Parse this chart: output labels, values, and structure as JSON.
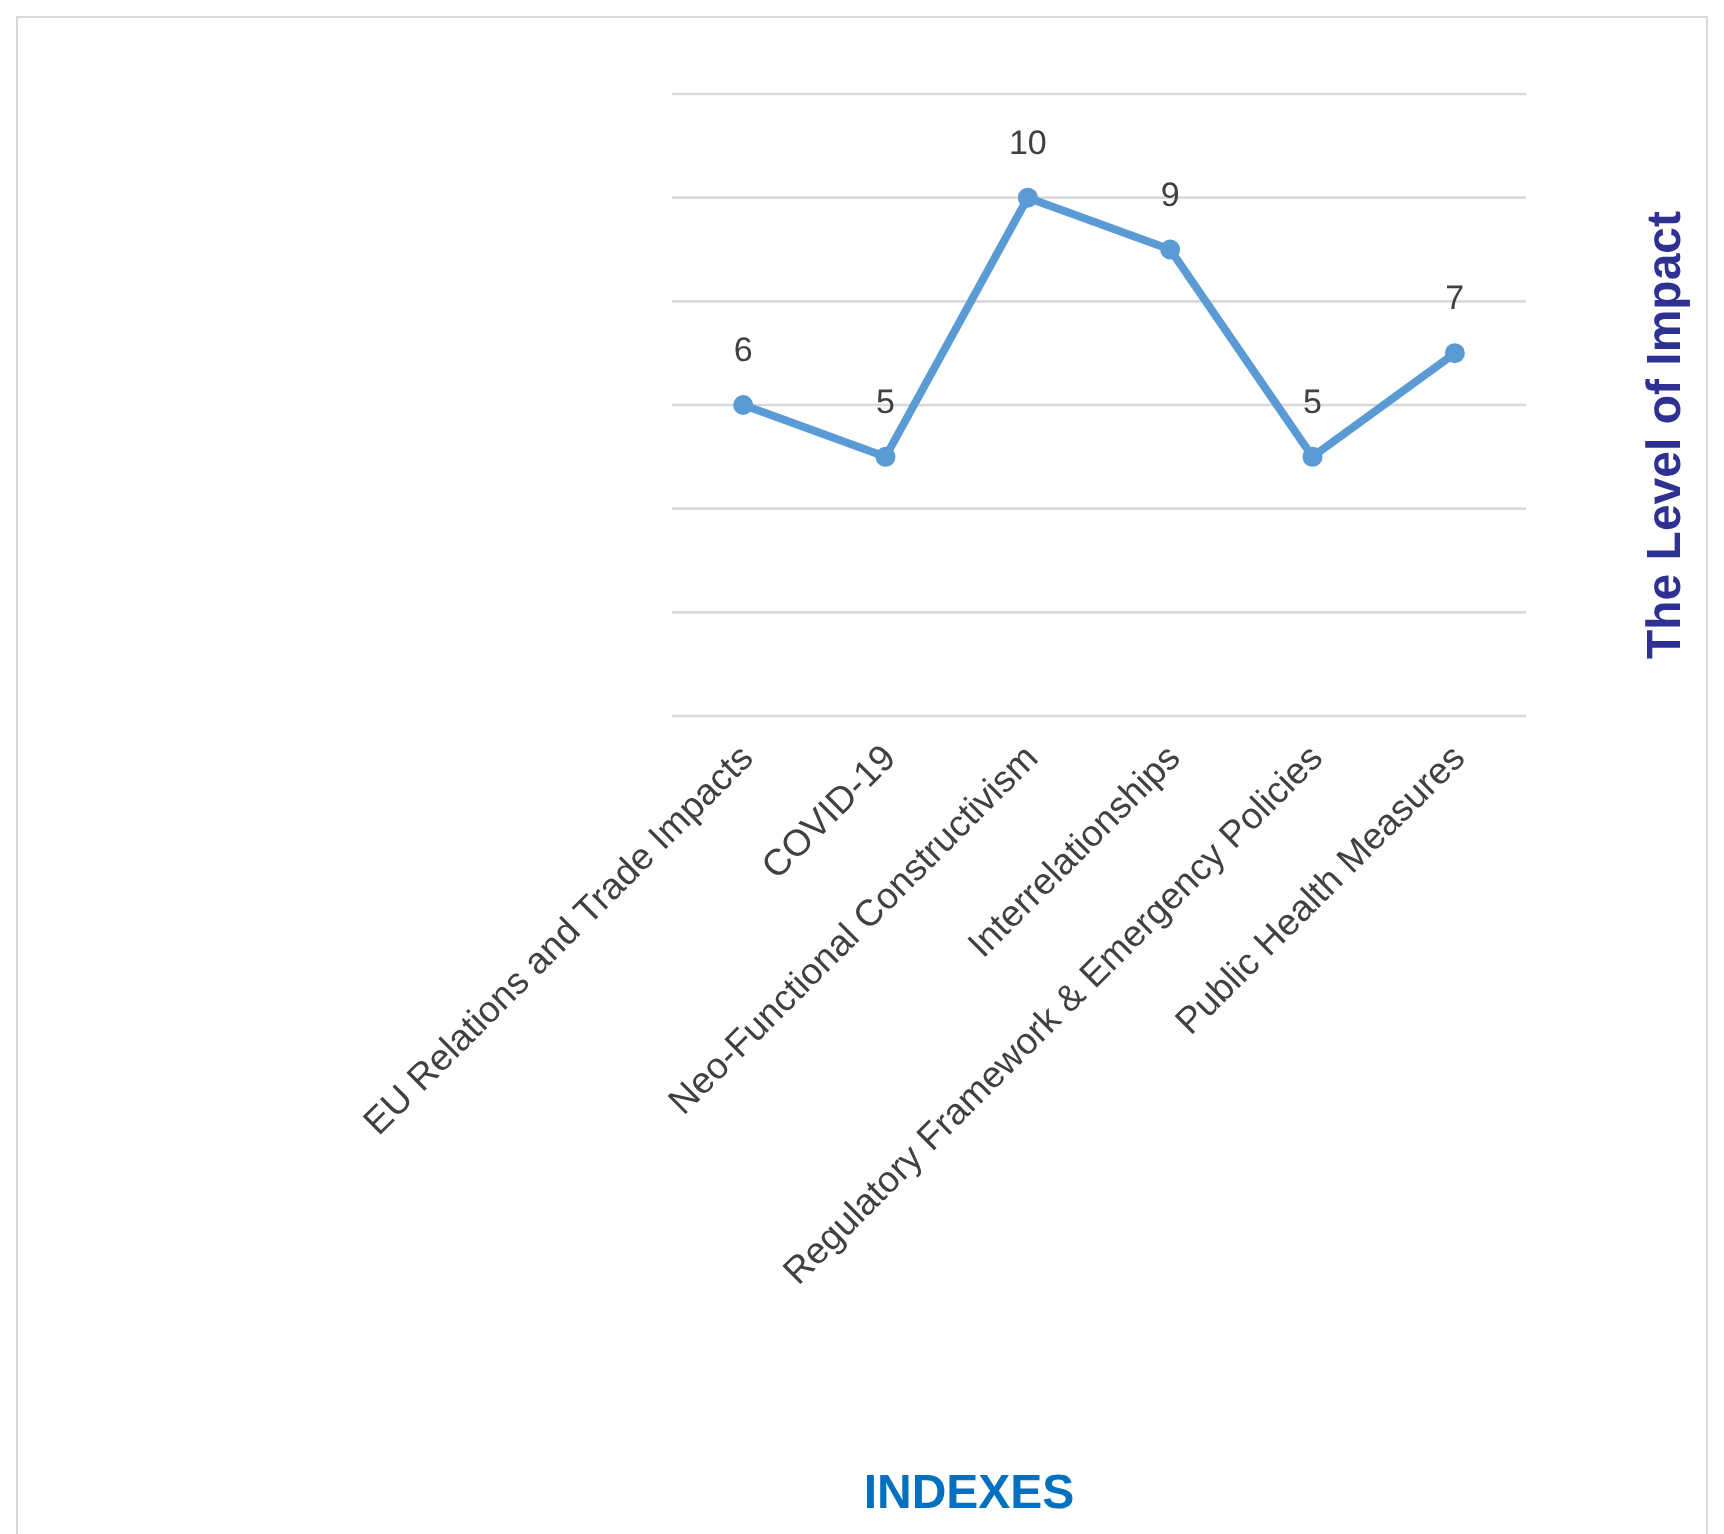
{
  "chart_data": {
    "type": "line",
    "xlabel": "INDEXES",
    "ylabel": "The Level of Impact",
    "categories": [
      "EU Relations and Trade Impacts",
      "COVID-19",
      "Neo-Functional Constructivism",
      "Interrelationships",
      "Regulatory Framework & Emergency Policies",
      "Public Health Measures"
    ],
    "series": [
      {
        "color": "#5b9bd5",
        "values": [
          6,
          5,
          10,
          9,
          5,
          7
        ]
      }
    ],
    "ylim": [
      0,
      12
    ],
    "yticks": [
      {
        "value": 0,
        "label": null
      },
      {
        "value": 2,
        "label": null
      },
      {
        "value": 4,
        "label": null
      },
      {
        "value": 6,
        "label": null
      },
      {
        "value": 8,
        "label": null
      },
      {
        "value": 10,
        "label": null
      },
      {
        "value": 12,
        "label": null
      }
    ],
    "tick_labels": "x",
    "grid": "y",
    "marker": "circle",
    "line_style": "solid",
    "data_labels": true
  }
}
